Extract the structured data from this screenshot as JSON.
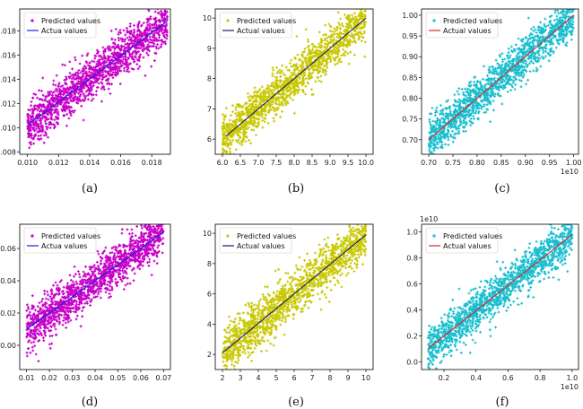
{
  "figure": {
    "colors": {
      "magenta": "#c800c8",
      "olive": "#c8c800",
      "cyan": "#17becf",
      "blue_line": "#1f1fdf",
      "navy_line": "#1a1a6e",
      "red_line": "#d62728"
    }
  },
  "chart_data": [
    {
      "id": "a",
      "caption": "(a)",
      "type": "scatter",
      "legend": [
        "Predicted values",
        "Actua  values"
      ],
      "legend_position": "top-left",
      "point_color": "#c800c8",
      "line_color": "#1f1fdf",
      "xlim": [
        0.0095,
        0.0192
      ],
      "ylim": [
        0.0078,
        0.0198
      ],
      "xticks": [
        0.01,
        0.012,
        0.014,
        0.016,
        0.018
      ],
      "xtick_labels": [
        "0.010",
        "0.012",
        "0.014",
        "0.016",
        "0.018"
      ],
      "yticks": [
        0.008,
        0.01,
        0.012,
        0.014,
        0.016,
        0.018
      ],
      "ytick_labels": [
        "0.008",
        "0.010",
        "0.012",
        "0.014",
        "0.016",
        "0.018"
      ],
      "offset_label": "",
      "actual_line": {
        "x": [
          0.01,
          0.019
        ],
        "y": [
          0.0102,
          0.0188
        ]
      },
      "predicted_band": {
        "x_range": [
          0.01,
          0.019
        ],
        "spread": 0.0009,
        "count": 1500
      }
    },
    {
      "id": "b",
      "caption": "(b)",
      "type": "scatter",
      "legend": [
        "Predicted values",
        "Actual values"
      ],
      "legend_position": "top-left",
      "point_color": "#c8c800",
      "line_color": "#1a1a6e",
      "xlim": [
        5.8,
        10.2
      ],
      "ylim": [
        5.5,
        10.3
      ],
      "xticks": [
        6.0,
        6.5,
        7.0,
        7.5,
        8.0,
        8.5,
        9.0,
        9.5,
        10.0
      ],
      "xtick_labels": [
        "6.0",
        "6.5",
        "7.0",
        "7.5",
        "8.0",
        "8.5",
        "9.0",
        "9.5",
        "10.0"
      ],
      "yticks": [
        6,
        7,
        8,
        9,
        10
      ],
      "ytick_labels": [
        "6",
        "7",
        "8",
        "9",
        "10"
      ],
      "offset_label": "",
      "actual_line": {
        "x": [
          6.1,
          10.0
        ],
        "y": [
          6.1,
          10.0
        ]
      },
      "predicted_band": {
        "x_range": [
          6.0,
          10.0
        ],
        "spread": 0.35,
        "count": 1500
      }
    },
    {
      "id": "c",
      "caption": "(c)",
      "type": "scatter",
      "legend": [
        "Predicted values",
        "Actual values"
      ],
      "legend_position": "top-left",
      "point_color": "#17becf",
      "line_color": "#d62728",
      "xlim": [
        0.685,
        1.01
      ],
      "ylim": [
        0.665,
        1.015
      ],
      "xticks": [
        0.7,
        0.75,
        0.8,
        0.85,
        0.9,
        0.95,
        1.0
      ],
      "xtick_labels": [
        "0.70",
        "0.75",
        "0.80",
        "0.85",
        "0.90",
        "0.95",
        "1.00"
      ],
      "yticks": [
        0.7,
        0.75,
        0.8,
        0.85,
        0.9,
        0.95,
        1.0
      ],
      "ytick_labels": [
        "0.70",
        "0.75",
        "0.80",
        "0.85",
        "0.90",
        "0.95",
        "1.00"
      ],
      "offset_label": "1e10",
      "offset_position": "bottom-right",
      "actual_line": {
        "x": [
          0.7,
          1.0
        ],
        "y": [
          0.7,
          1.0
        ]
      },
      "predicted_band": {
        "x_range": [
          0.7,
          1.0
        ],
        "spread": 0.025,
        "count": 1500
      }
    },
    {
      "id": "d",
      "caption": "(d)",
      "type": "scatter",
      "legend": [
        "Predicted values",
        "Actua  values"
      ],
      "legend_position": "top-left",
      "point_color": "#c800c8",
      "line_color": "#1f1fdf",
      "xlim": [
        0.007,
        0.073
      ],
      "ylim": [
        -0.015,
        0.075
      ],
      "xticks": [
        0.01,
        0.02,
        0.03,
        0.04,
        0.05,
        0.06,
        0.07
      ],
      "xtick_labels": [
        "0.01",
        "0.02",
        "0.03",
        "0.04",
        "0.05",
        "0.06",
        "0.07"
      ],
      "yticks": [
        0.0,
        0.02,
        0.04,
        0.06
      ],
      "ytick_labels": [
        "0.00",
        "0.02",
        "0.04",
        "0.06"
      ],
      "offset_label": "",
      "actual_line": {
        "x": [
          0.01,
          0.07
        ],
        "y": [
          0.01,
          0.07
        ]
      },
      "predicted_band": {
        "x_range": [
          0.01,
          0.07
        ],
        "spread": 0.007,
        "count": 1500
      }
    },
    {
      "id": "e",
      "caption": "(e)",
      "type": "scatter",
      "legend": [
        "Predicted values",
        "Actual values"
      ],
      "legend_position": "top-left",
      "point_color": "#c8c800",
      "line_color": "#1a1a6e",
      "xlim": [
        1.6,
        10.4
      ],
      "ylim": [
        1.0,
        10.6
      ],
      "xticks": [
        2,
        3,
        4,
        5,
        6,
        7,
        8,
        9,
        10
      ],
      "xtick_labels": [
        "2",
        "3",
        "4",
        "5",
        "6",
        "7",
        "8",
        "9",
        "10"
      ],
      "yticks": [
        2,
        4,
        6,
        8,
        10
      ],
      "ytick_labels": [
        "2",
        "4",
        "6",
        "8",
        "10"
      ],
      "offset_label": "",
      "actual_line": {
        "x": [
          2.0,
          10.0
        ],
        "y": [
          2.1,
          9.9
        ]
      },
      "predicted_band": {
        "x_range": [
          2.0,
          10.0
        ],
        "spread": 0.75,
        "count": 1500
      }
    },
    {
      "id": "f",
      "caption": "(f)",
      "type": "scatter",
      "legend": [
        "Predicted values",
        "Actual values"
      ],
      "legend_position": "top-left",
      "point_color": "#17becf",
      "line_color": "#d62728",
      "xlim": [
        0.06,
        1.04
      ],
      "ylim": [
        -0.06,
        1.06
      ],
      "xticks": [
        0.2,
        0.4,
        0.6,
        0.8,
        1.0
      ],
      "xtick_labels": [
        "0.2",
        "0.4",
        "0.6",
        "0.8",
        "1.0"
      ],
      "yticks": [
        0.0,
        0.2,
        0.4,
        0.6,
        0.8,
        1.0
      ],
      "ytick_labels": [
        "0.0",
        "0.2",
        "0.4",
        "0.6",
        "0.8",
        "1.0"
      ],
      "offset_label": "1e10",
      "offset_position": "bottom-right",
      "offset_label_y": "1e10",
      "actual_line": {
        "x": [
          0.1,
          1.0
        ],
        "y": [
          0.1,
          0.98
        ]
      },
      "predicted_band": {
        "x_range": [
          0.1,
          1.0
        ],
        "spread": 0.08,
        "count": 1500
      }
    }
  ]
}
